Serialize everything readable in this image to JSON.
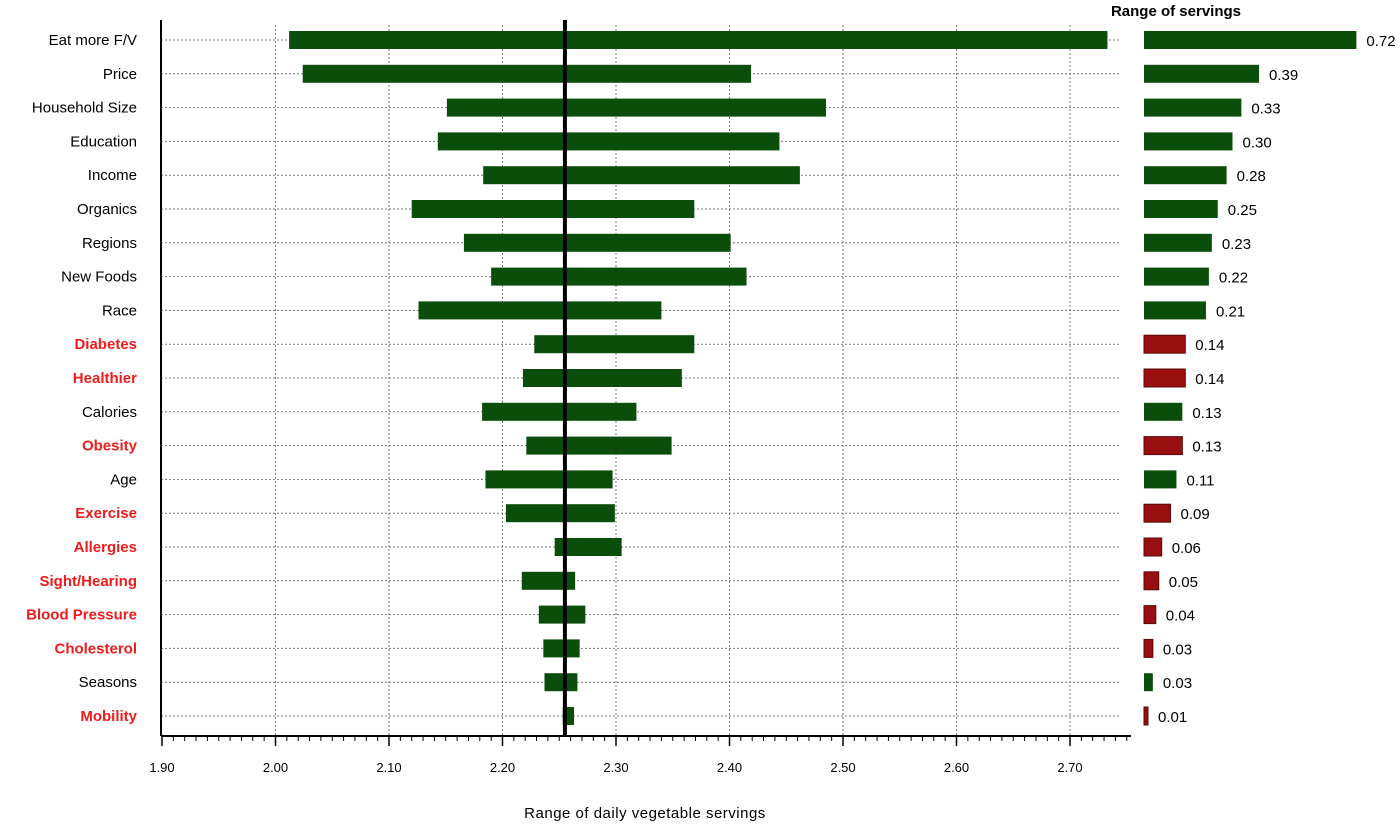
{
  "chart_data": {
    "type": "bar",
    "subtype": "tornado",
    "xlabel": "Range of daily vegetable servings",
    "range_title": "Range of servings",
    "xlim": [
      1.9,
      2.76
    ],
    "x_ticks": [
      "1.90",
      "2.00",
      "2.10",
      "2.20",
      "2.30",
      "2.40",
      "2.50",
      "2.60",
      "2.70"
    ],
    "baseline": 2.255,
    "grid": true,
    "colors": {
      "bar": "#0b4d0b",
      "highlight_bar": "#990f0f",
      "highlight_label": "#ee1c1c",
      "label": "#000000",
      "axis": "#000000",
      "grid": "#777777"
    },
    "categories": [
      {
        "label": "Eat  more  F/V",
        "low": 2.012,
        "high": 2.733,
        "range": 0.72,
        "range_label": "0.72",
        "highlight": false
      },
      {
        "label": "Price",
        "low": 2.024,
        "high": 2.419,
        "range": 0.39,
        "range_label": "0.39",
        "highlight": false
      },
      {
        "label": "Household  Size",
        "low": 2.151,
        "high": 2.485,
        "range": 0.33,
        "range_label": "0.33",
        "highlight": false
      },
      {
        "label": "Education",
        "low": 2.143,
        "high": 2.444,
        "range": 0.3,
        "range_label": "0.30",
        "highlight": false
      },
      {
        "label": "Income",
        "low": 2.183,
        "high": 2.462,
        "range": 0.28,
        "range_label": "0.28",
        "highlight": false
      },
      {
        "label": "Organics",
        "low": 2.12,
        "high": 2.369,
        "range": 0.25,
        "range_label": "0.25",
        "highlight": false
      },
      {
        "label": "Regions",
        "low": 2.166,
        "high": 2.401,
        "range": 0.23,
        "range_label": "0.23",
        "highlight": false
      },
      {
        "label": "New   Foods",
        "low": 2.19,
        "high": 2.415,
        "range": 0.22,
        "range_label": "0.22",
        "highlight": false
      },
      {
        "label": "Race",
        "low": 2.126,
        "high": 2.34,
        "range": 0.21,
        "range_label": "0.21",
        "highlight": false
      },
      {
        "label": "Diabetes",
        "low": 2.228,
        "high": 2.369,
        "range": 0.14,
        "range_label": "0.14",
        "highlight": true
      },
      {
        "label": "Healthier",
        "low": 2.218,
        "high": 2.358,
        "range": 0.14,
        "range_label": "0.14",
        "highlight": true
      },
      {
        "label": "Calories",
        "low": 2.182,
        "high": 2.318,
        "range": 0.13,
        "range_label": "0.13",
        "highlight": false
      },
      {
        "label": "Obesity",
        "low": 2.221,
        "high": 2.349,
        "range": 0.13,
        "range_label": "0.13",
        "highlight": true
      },
      {
        "label": "Age",
        "low": 2.185,
        "high": 2.297,
        "range": 0.11,
        "range_label": "0.11",
        "highlight": false
      },
      {
        "label": "Exercise",
        "low": 2.203,
        "high": 2.299,
        "range": 0.09,
        "range_label": "0.09",
        "highlight": true
      },
      {
        "label": "Allergies",
        "low": 2.246,
        "high": 2.305,
        "range": 0.06,
        "range_label": "0.06",
        "highlight": true
      },
      {
        "label": "Sight/Hearing",
        "low": 2.217,
        "high": 2.264,
        "range": 0.05,
        "range_label": "0.05",
        "highlight": true
      },
      {
        "label": "Blood   Pressure",
        "low": 2.232,
        "high": 2.273,
        "range": 0.04,
        "range_label": "0.04",
        "highlight": true
      },
      {
        "label": "Cholesterol",
        "low": 2.236,
        "high": 2.268,
        "range": 0.03,
        "range_label": "0.03",
        "highlight": true
      },
      {
        "label": "Seasons",
        "low": 2.237,
        "high": 2.266,
        "range": 0.03,
        "range_label": "0.03",
        "highlight": false
      },
      {
        "label": "Mobility",
        "low": 2.253,
        "high": 2.263,
        "range": 0.01,
        "range_label": "0.01",
        "highlight": true
      }
    ]
  }
}
